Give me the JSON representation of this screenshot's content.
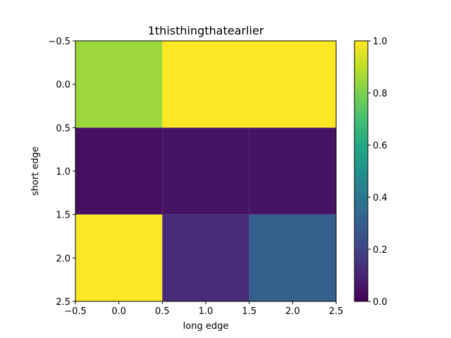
{
  "chart_data": {
    "type": "heatmap",
    "title": "1thisthingthatearlier",
    "xlabel": "long edge",
    "ylabel": "short edge",
    "x_categories": [
      0,
      1,
      2
    ],
    "y_categories": [
      0,
      1,
      2
    ],
    "values": [
      [
        0.85,
        1.0,
        1.0
      ],
      [
        0.04,
        0.05,
        0.05
      ],
      [
        1.0,
        0.12,
        0.3
      ]
    ],
    "xlim": [
      -0.5,
      2.5
    ],
    "ylim": [
      2.5,
      -0.5
    ],
    "x_ticks": [
      "−0.5",
      "0.0",
      "0.5",
      "1.0",
      "1.5",
      "2.0",
      "2.5"
    ],
    "y_ticks": [
      "−0.5",
      "0.0",
      "0.5",
      "1.0",
      "1.5",
      "2.0",
      "2.5"
    ],
    "colorbar": {
      "range": [
        0.0,
        1.0
      ],
      "ticks": [
        "0.0",
        "0.2",
        "0.4",
        "0.6",
        "0.8",
        "1.0"
      ],
      "colormap": "viridis"
    },
    "grid": false
  }
}
